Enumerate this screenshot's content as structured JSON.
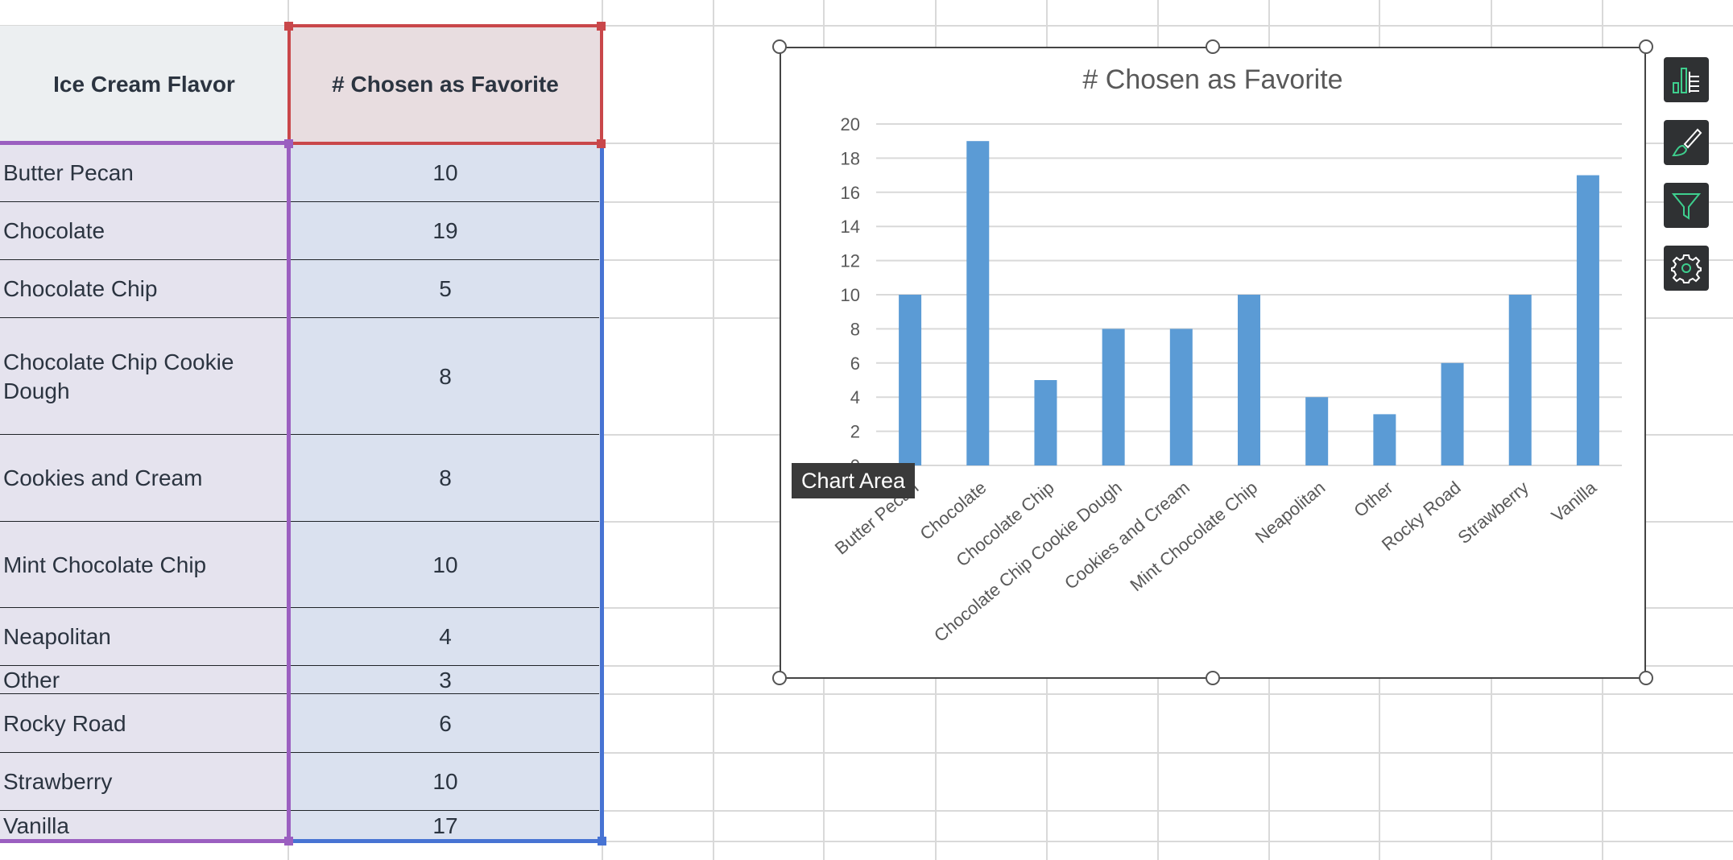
{
  "table": {
    "header_flavor": "Ice Cream Flavor",
    "header_count": "# Chosen as Favorite",
    "rows": [
      {
        "flavor": "Butter Pecan",
        "count": "10"
      },
      {
        "flavor": "Chocolate",
        "count": "19"
      },
      {
        "flavor": "Chocolate Chip",
        "count": "5"
      },
      {
        "flavor": "Chocolate Chip Cookie Dough",
        "count": "8"
      },
      {
        "flavor": "Cookies and Cream",
        "count": "8"
      },
      {
        "flavor": "Mint Chocolate Chip",
        "count": "10"
      },
      {
        "flavor": "Neapolitan",
        "count": "4"
      },
      {
        "flavor": "Other",
        "count": "3"
      },
      {
        "flavor": "Rocky Road",
        "count": "6"
      },
      {
        "flavor": "Strawberry",
        "count": "10"
      },
      {
        "flavor": "Vanilla",
        "count": "17"
      }
    ]
  },
  "tooltip": "Chart Area",
  "side_buttons": [
    {
      "icon": "chart-elements-icon"
    },
    {
      "icon": "chart-styles-icon"
    },
    {
      "icon": "chart-filters-icon"
    },
    {
      "icon": "chart-settings-icon"
    }
  ],
  "colors": {
    "bar": "#5b9bd5",
    "selection_red": "#c9474a",
    "selection_purple": "#9b5fc0",
    "selection_blue": "#4773d3",
    "icon_accent": "#3ecf8e"
  },
  "chart_data": {
    "type": "bar",
    "title": "# Chosen as Favorite",
    "categories": [
      "Butter Pecan",
      "Chocolate",
      "Chocolate Chip",
      "Chocolate Chip Cookie Dough",
      "Cookies and Cream",
      "Mint Chocolate Chip",
      "Neapolitan",
      "Other",
      "Rocky Road",
      "Strawberry",
      "Vanilla"
    ],
    "values": [
      10,
      19,
      5,
      8,
      8,
      10,
      4,
      3,
      6,
      10,
      17
    ],
    "ylim": [
      0,
      20
    ],
    "yticks": [
      "0",
      "2",
      "4",
      "6",
      "8",
      "10",
      "12",
      "14",
      "16",
      "18",
      "20"
    ],
    "grid": true,
    "legend": "none"
  }
}
